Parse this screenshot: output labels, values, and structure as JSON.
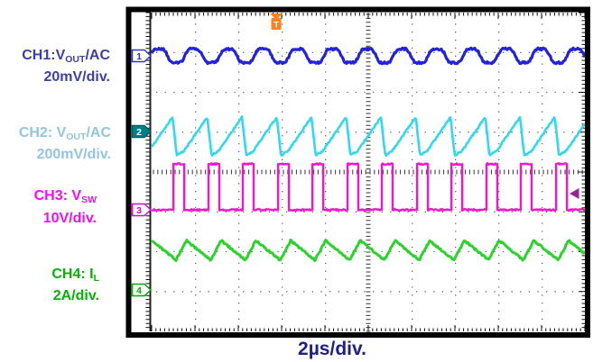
{
  "scope": {
    "timebase_label": "2µs/div.",
    "timebase_color": "#20208a",
    "trigger": {
      "label": "T",
      "color": "#ff7f1a"
    },
    "right_arrow_color": "#992299",
    "grid": {
      "h_divisions": 10,
      "v_divisions": 8
    }
  },
  "channels": [
    {
      "marker": "1",
      "name_prefix": "CH1:V",
      "name_sub": "OUT",
      "name_suffix": "/AC",
      "scale": "20mV/div.",
      "label_color": "#3f3fa8",
      "trace_color": "#2323dc",
      "marker_fill": "#ffffff",
      "marker_stroke": "#3333cc",
      "marker_text_color": "#3333cc"
    },
    {
      "marker": "2",
      "name_prefix": "CH2: V",
      "name_sub": "OUT",
      "name_suffix": "/AC",
      "scale": "200mV/div.",
      "label_color": "#92c5e1",
      "trace_color": "#2fd9ef",
      "marker_fill": "#007f86",
      "marker_stroke": "#006066",
      "marker_text_color": "#ffffff"
    },
    {
      "marker": "3",
      "name_prefix": "CH3: V",
      "name_sub": "SW",
      "name_suffix": "",
      "scale": "10V/div.",
      "label_color": "#f50df5",
      "trace_color": "#f316cd",
      "marker_fill": "#ffffff",
      "marker_stroke": "#dd00dd",
      "marker_text_color": "#dd00dd"
    },
    {
      "marker": "4",
      "name_prefix": "CH4: I",
      "name_sub": "L",
      "name_suffix": "",
      "scale": "2A/div.",
      "label_color": "#0ab00a",
      "trace_color": "#2cd32c",
      "marker_fill": "#ffffff",
      "marker_stroke": "#00aa00",
      "marker_text_color": "#00aa00"
    }
  ],
  "chart_data": {
    "type": "line",
    "title": "Oscilloscope capture: switching-converter waveforms",
    "x_axis": {
      "label": "2µs/div.",
      "divisions": 10,
      "total_time_us": 20
    },
    "y_axis": {
      "divisions": 8
    },
    "cycles_visible": 12.47,
    "series": [
      {
        "name": "CH1: VOUT/AC",
        "vertical_scale": "20mV/div.",
        "shape": "sine_ripple",
        "center_div": 1.085,
        "amplitude_div": 0.2
      },
      {
        "name": "CH2: VOUT/AC",
        "vertical_scale": "200mV/div.",
        "shape": "sawtooth",
        "peak_div": 2.62,
        "trough_div": 3.48
      },
      {
        "name": "CH3: VSW",
        "vertical_scale": "10V/div.",
        "shape": "pwm",
        "duty": 0.31,
        "high_div": 3.8,
        "low_div": 4.95
      },
      {
        "name": "CH4: IL",
        "vertical_scale": "2A/div.",
        "shape": "triangle",
        "peak_div": 5.72,
        "trough_div": 6.21
      }
    ]
  }
}
